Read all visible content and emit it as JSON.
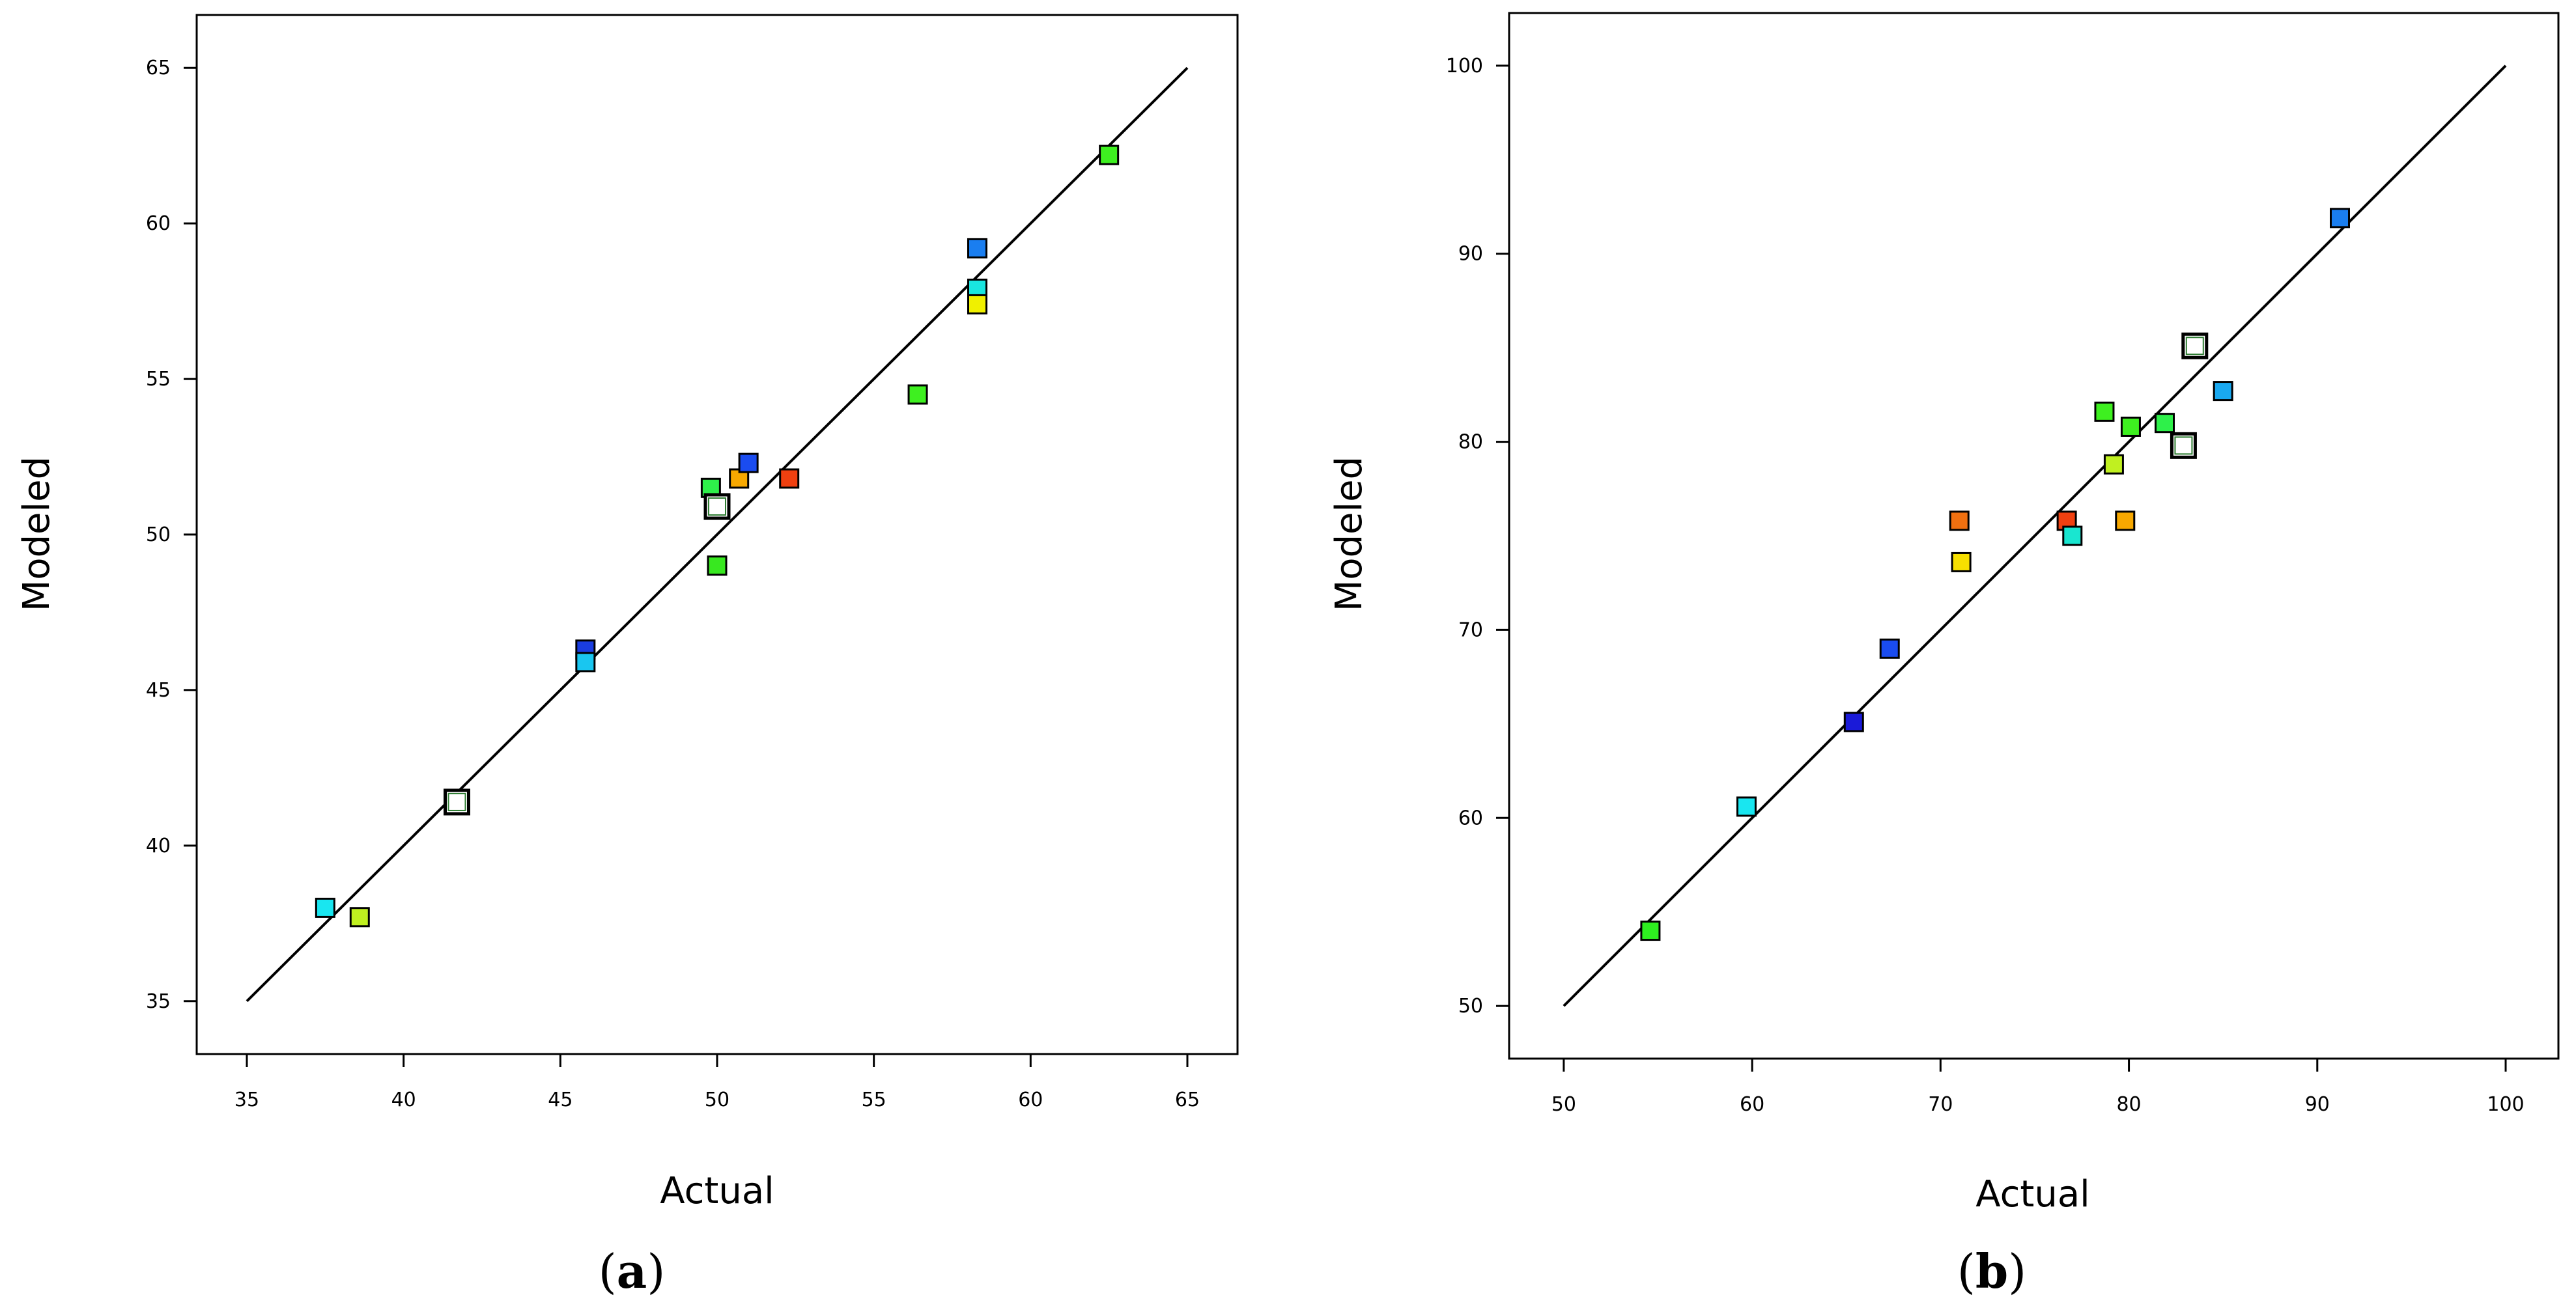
{
  "chart_data": [
    {
      "id": "a",
      "type": "scatter",
      "caption": "(a)",
      "caption_letter": "a",
      "xlabel": "Actual",
      "ylabel": "Modeled",
      "xlim": [
        33.4,
        66.6
      ],
      "ylim": [
        33.3,
        66.7
      ],
      "xticks": [
        35,
        40,
        45,
        50,
        55,
        60,
        65
      ],
      "yticks": [
        35,
        40,
        45,
        50,
        55,
        60,
        65
      ],
      "fit_line": [
        [
          35,
          35
        ],
        [
          65,
          65
        ]
      ],
      "points": [
        {
          "x": 37.5,
          "y": 38.0,
          "color": "#19e6f0"
        },
        {
          "x": 38.6,
          "y": 37.7,
          "color": "#c0f020"
        },
        {
          "x": 41.7,
          "y": 41.4,
          "color": "#ffffff",
          "hollow": true
        },
        {
          "x": 45.8,
          "y": 46.3,
          "color": "#1a3de0"
        },
        {
          "x": 45.8,
          "y": 45.9,
          "color": "#19c6f0"
        },
        {
          "x": 49.8,
          "y": 51.5,
          "color": "#2ef04a"
        },
        {
          "x": 50.0,
          "y": 49.0,
          "color": "#38e820"
        },
        {
          "x": 50.0,
          "y": 50.9,
          "color": "#ffffff",
          "hollow": true
        },
        {
          "x": 50.7,
          "y": 51.8,
          "color": "#f7a800"
        },
        {
          "x": 51.0,
          "y": 52.3,
          "color": "#1a4cf0"
        },
        {
          "x": 52.3,
          "y": 51.8,
          "color": "#f04010"
        },
        {
          "x": 56.4,
          "y": 54.5,
          "color": "#3ef020"
        },
        {
          "x": 58.3,
          "y": 59.2,
          "color": "#1a7ef0"
        },
        {
          "x": 58.3,
          "y": 57.9,
          "color": "#19e6e0"
        },
        {
          "x": 58.3,
          "y": 57.4,
          "color": "#f0f000"
        },
        {
          "x": 62.5,
          "y": 62.2,
          "color": "#3ef020"
        }
      ]
    },
    {
      "id": "b",
      "type": "scatter",
      "caption": "(b)",
      "caption_letter": "b",
      "xlabel": "Actual",
      "ylabel": "Modeled",
      "xlim": [
        47.1,
        102.8
      ],
      "ylim": [
        47.2,
        102.8
      ],
      "xticks": [
        50,
        60,
        70,
        80,
        90,
        100
      ],
      "yticks": [
        50,
        60,
        70,
        80,
        90,
        100
      ],
      "fit_line": [
        [
          50,
          50
        ],
        [
          100,
          100
        ]
      ],
      "points": [
        {
          "x": 54.6,
          "y": 54.0,
          "color": "#2ef020"
        },
        {
          "x": 59.7,
          "y": 60.6,
          "color": "#19e6f0"
        },
        {
          "x": 65.4,
          "y": 65.1,
          "color": "#1a1ad8"
        },
        {
          "x": 67.3,
          "y": 69.0,
          "color": "#1a4cf0"
        },
        {
          "x": 71.0,
          "y": 75.8,
          "color": "#f07010"
        },
        {
          "x": 71.1,
          "y": 73.6,
          "color": "#f7e000"
        },
        {
          "x": 76.7,
          "y": 75.8,
          "color": "#f04010"
        },
        {
          "x": 77.0,
          "y": 75.0,
          "color": "#19e6d0"
        },
        {
          "x": 78.7,
          "y": 81.6,
          "color": "#3ef020"
        },
        {
          "x": 79.2,
          "y": 78.8,
          "color": "#c0f020"
        },
        {
          "x": 79.8,
          "y": 75.8,
          "color": "#f7a800"
        },
        {
          "x": 80.1,
          "y": 80.8,
          "color": "#3ef020"
        },
        {
          "x": 81.9,
          "y": 81.0,
          "color": "#2ef04a"
        },
        {
          "x": 82.9,
          "y": 79.8,
          "color": "#ffffff",
          "hollow": true
        },
        {
          "x": 83.5,
          "y": 85.1,
          "color": "#ffffff",
          "hollow": true
        },
        {
          "x": 85.0,
          "y": 82.7,
          "color": "#19a8f0"
        },
        {
          "x": 91.2,
          "y": 91.9,
          "color": "#1a7ef0"
        }
      ]
    }
  ]
}
